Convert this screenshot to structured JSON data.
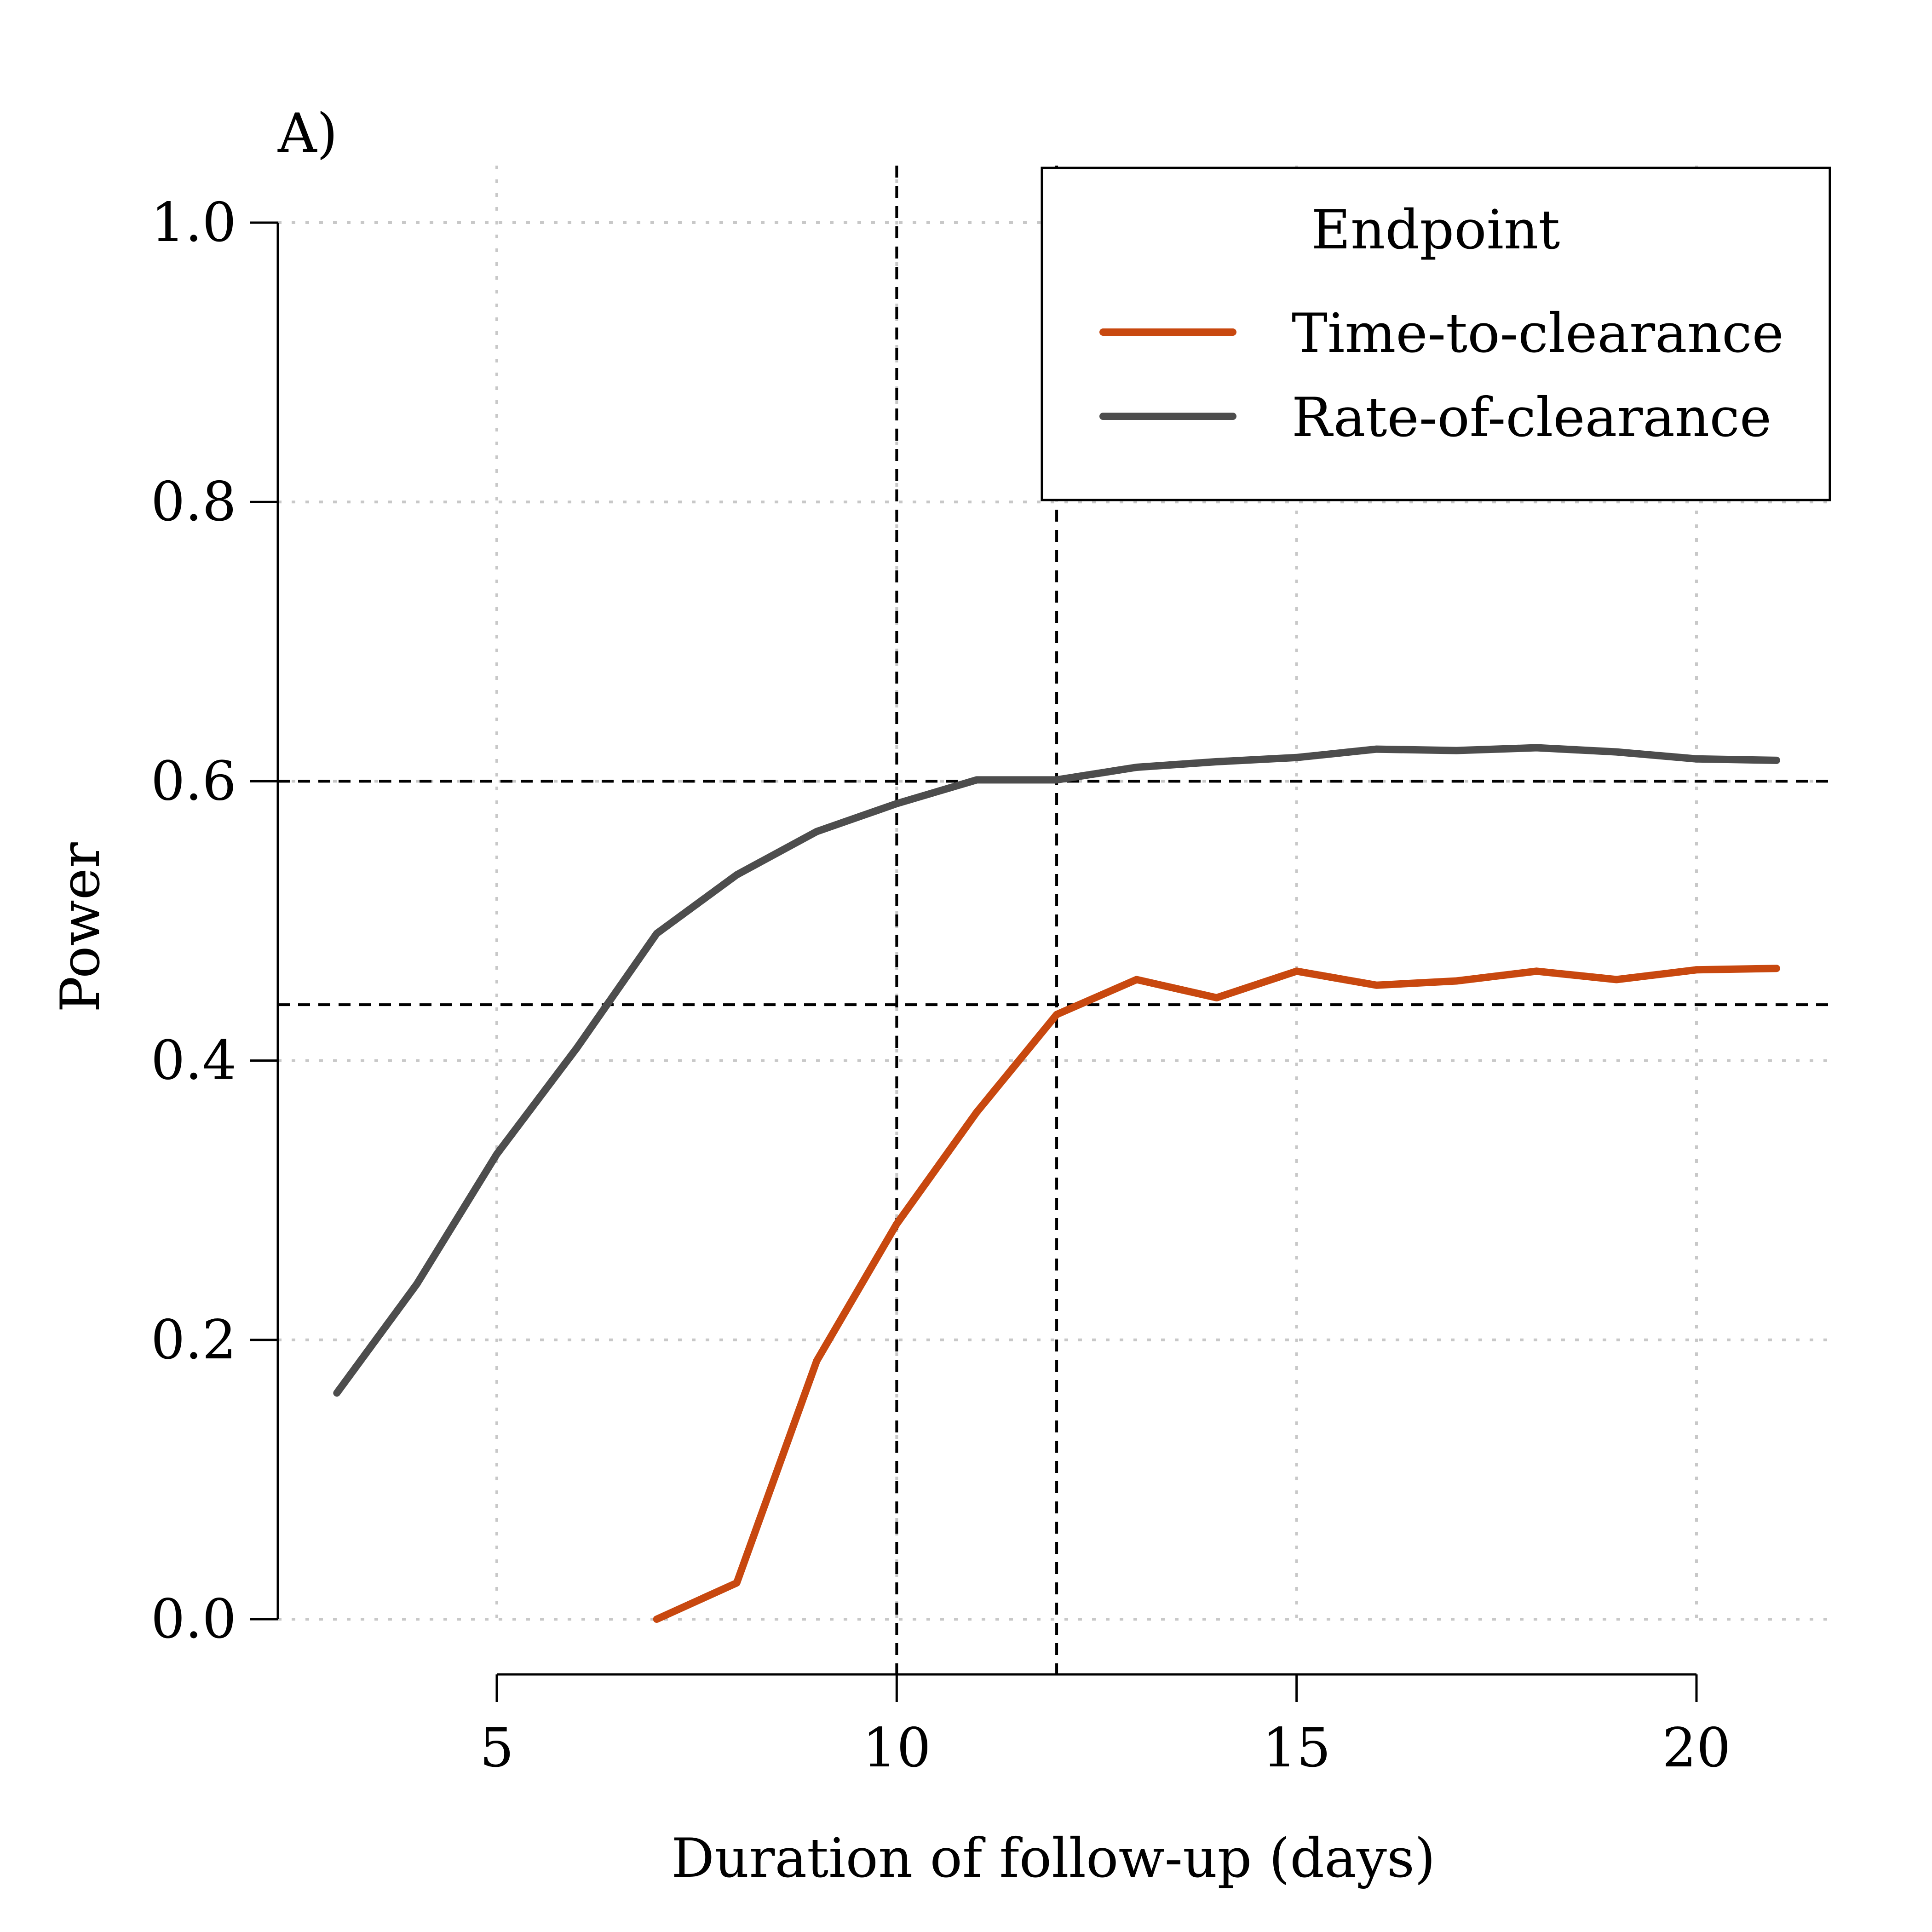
{
  "chart_data": {
    "type": "line",
    "panel_label": "A)",
    "title": "",
    "xlabel": "Duration of follow-up (days)",
    "ylabel": "Power",
    "xlim": [
      2.5,
      22
    ],
    "ylim": [
      0,
      1
    ],
    "x_ticks": [
      5,
      10,
      15,
      20
    ],
    "y_ticks": [
      0.0,
      0.2,
      0.4,
      0.6,
      0.8,
      1.0
    ],
    "x_tick_labels": [
      "5",
      "10",
      "15",
      "20"
    ],
    "y_tick_labels": [
      "0.0",
      "0.2",
      "0.4",
      "0.6",
      "0.8",
      "1.0"
    ],
    "grid": true,
    "legend": {
      "title": "Endpoint",
      "placement": "top-right"
    },
    "series": [
      {
        "name": "Time-to-clearance",
        "color": "#C8480F",
        "x": [
          7,
          8,
          9,
          10,
          11,
          12,
          13,
          14,
          15,
          16,
          17,
          18,
          19,
          20,
          21
        ],
        "y": [
          0.0,
          0.026,
          0.185,
          0.283,
          0.363,
          0.433,
          0.458,
          0.445,
          0.464,
          0.454,
          0.457,
          0.464,
          0.458,
          0.465,
          0.466
        ]
      },
      {
        "name": "Rate-of-clearance",
        "color": "#4D4D4D",
        "x": [
          3,
          4,
          5,
          6,
          7,
          8,
          9,
          10,
          11,
          12,
          13,
          14,
          15,
          16,
          17,
          18,
          19,
          20,
          21
        ],
        "y": [
          0.162,
          0.24,
          0.333,
          0.409,
          0.491,
          0.533,
          0.564,
          0.584,
          0.601,
          0.601,
          0.61,
          0.614,
          0.617,
          0.623,
          0.622,
          0.624,
          0.621,
          0.616,
          0.615
        ]
      }
    ],
    "reference_lines": {
      "vertical": [
        10,
        12
      ],
      "horizontal": [
        0.6,
        0.44
      ]
    }
  }
}
